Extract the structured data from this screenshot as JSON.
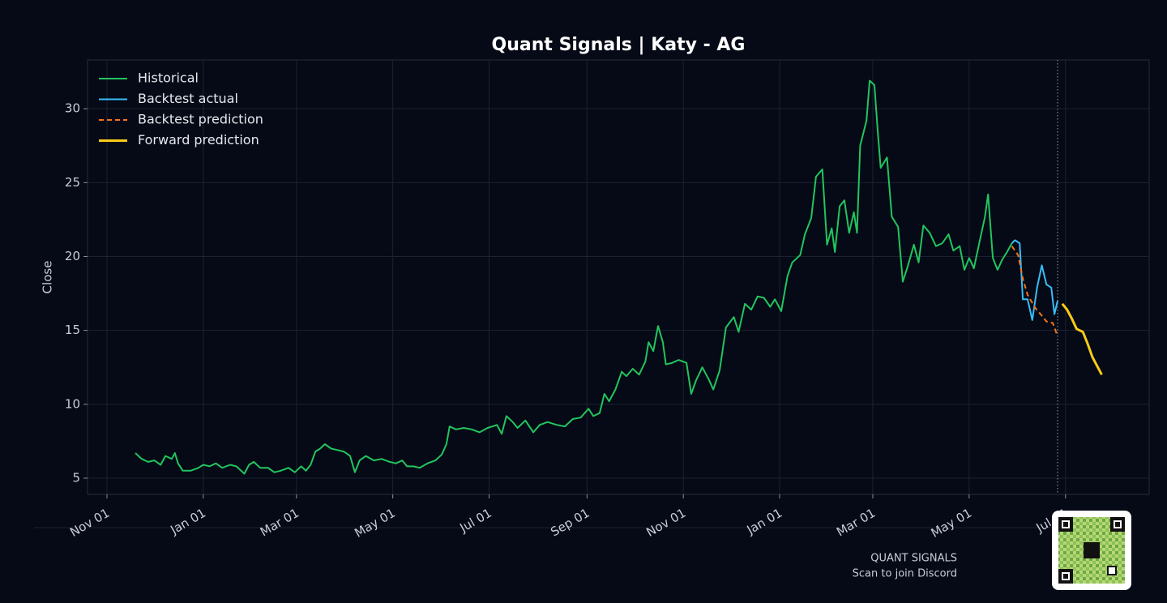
{
  "chart_data": {
    "type": "line",
    "title": "Quant Signals | Katy - AG",
    "ylabel": "Close",
    "xlim": [
      -12.3,
      660
    ],
    "xticks": [
      {
        "value": 0,
        "label": "Nov 01"
      },
      {
        "value": 61,
        "label": "Jan 01"
      },
      {
        "value": 120,
        "label": "Mar 01"
      },
      {
        "value": 181,
        "label": "May 01"
      },
      {
        "value": 242,
        "label": "Jul 01"
      },
      {
        "value": 304,
        "label": "Sep 01"
      },
      {
        "value": 365,
        "label": "Nov 01"
      },
      {
        "value": 426,
        "label": "Jan 01"
      },
      {
        "value": 485,
        "label": "Mar 01"
      },
      {
        "value": 546,
        "label": "May 01"
      },
      {
        "value": 607,
        "label": "Jul 01"
      }
    ],
    "ylim": [
      3.9,
      33.3
    ],
    "yticks": [
      5,
      10,
      15,
      20,
      25,
      30
    ],
    "grid": true,
    "legend": "upper left",
    "vline": 602,
    "series": [
      {
        "name": "Historical",
        "color": "#22c55e",
        "linestyle": "solid",
        "linewidth": 2,
        "x": [
          18,
          22,
          26,
          30,
          34,
          37,
          41,
          43,
          45,
          48,
          53,
          58,
          61,
          65,
          69,
          73,
          78,
          82,
          87,
          90,
          93,
          97,
          102,
          106,
          110,
          115,
          119,
          123,
          126,
          129,
          132,
          135,
          138,
          142,
          146,
          150,
          154,
          157,
          160,
          164,
          169,
          174,
          179,
          183,
          187,
          190,
          194,
          198,
          203,
          208,
          212,
          215,
          217,
          221,
          226,
          231,
          236,
          241,
          247,
          250,
          253,
          257,
          260,
          265,
          270,
          274,
          279,
          285,
          290,
          295,
          300,
          305,
          308,
          312,
          315,
          318,
          322,
          326,
          329,
          333,
          337,
          341,
          343,
          346,
          349,
          352,
          354,
          358,
          362,
          367,
          370,
          373,
          377,
          381,
          384,
          388,
          392,
          397,
          400,
          404,
          408,
          412,
          416,
          420,
          423,
          427,
          431,
          434,
          439,
          442,
          446,
          449,
          453,
          456,
          459,
          461,
          464,
          467,
          470,
          473,
          475,
          477,
          481,
          483,
          486,
          488,
          490,
          494,
          497,
          501,
          504,
          507,
          511,
          514,
          517,
          521,
          525,
          529,
          533,
          536,
          540,
          543,
          546,
          549,
          553,
          556,
          558,
          561,
          564,
          567,
          570,
          573
        ],
        "values": [
          6.7,
          6.3,
          6.1,
          6.2,
          5.9,
          6.5,
          6.3,
          6.7,
          6.0,
          5.5,
          5.5,
          5.7,
          5.9,
          5.8,
          6.0,
          5.7,
          5.9,
          5.8,
          5.3,
          5.9,
          6.1,
          5.7,
          5.7,
          5.4,
          5.5,
          5.7,
          5.4,
          5.8,
          5.5,
          5.9,
          6.8,
          7.0,
          7.3,
          7.0,
          6.9,
          6.8,
          6.5,
          5.4,
          6.2,
          6.5,
          6.2,
          6.3,
          6.1,
          6.0,
          6.2,
          5.8,
          5.8,
          5.7,
          6.0,
          6.2,
          6.6,
          7.3,
          8.5,
          8.3,
          8.4,
          8.3,
          8.1,
          8.4,
          8.6,
          8.0,
          9.2,
          8.8,
          8.4,
          8.9,
          8.1,
          8.6,
          8.8,
          8.6,
          8.5,
          9.0,
          9.1,
          9.7,
          9.2,
          9.4,
          10.7,
          10.2,
          11.0,
          12.2,
          11.9,
          12.4,
          12.0,
          12.9,
          14.2,
          13.6,
          15.3,
          14.2,
          12.7,
          12.8,
          13.0,
          12.8,
          10.7,
          11.6,
          12.5,
          11.7,
          11.0,
          12.3,
          15.2,
          15.9,
          14.9,
          16.8,
          16.4,
          17.3,
          17.2,
          16.6,
          17.1,
          16.3,
          18.7,
          19.6,
          20.1,
          21.5,
          22.6,
          25.4,
          25.9,
          20.8,
          21.9,
          20.3,
          23.4,
          23.8,
          21.6,
          23.0,
          21.6,
          27.5,
          29.2,
          31.9,
          31.6,
          28.6,
          26.0,
          26.7,
          22.7,
          22.0,
          18.3,
          19.3,
          20.8,
          19.6,
          22.1,
          21.6,
          20.7,
          20.9,
          21.5,
          20.4,
          20.7,
          19.1,
          19.9,
          19.2,
          21.2,
          22.7,
          24.2,
          19.9,
          19.1,
          19.8,
          20.3,
          20.9
        ]
      },
      {
        "name": "Backtest actual",
        "color": "#38bdf8",
        "linestyle": "solid",
        "linewidth": 2,
        "x": [
          573,
          575,
          578,
          580,
          583,
          586,
          589,
          592,
          595,
          598,
          600,
          602
        ],
        "values": [
          20.9,
          21.1,
          20.9,
          17.1,
          17.1,
          15.7,
          17.9,
          19.4,
          18.1,
          17.9,
          16.1,
          17.0
        ]
      },
      {
        "name": "Backtest prediction",
        "color": "#f97316",
        "linestyle": "dashed",
        "linewidth": 2,
        "x": [
          573,
          577,
          580,
          583,
          588,
          592,
          595,
          599,
          602
        ],
        "values": [
          20.7,
          20.1,
          18.5,
          17.4,
          16.5,
          16.0,
          15.6,
          15.5,
          14.6
        ]
      },
      {
        "name": "Forward prediction",
        "color": "#facc15",
        "linestyle": "solid",
        "linewidth": 3,
        "x": [
          605,
          608,
          611,
          614,
          618,
          621,
          624,
          627,
          630
        ],
        "values": [
          16.8,
          16.4,
          15.8,
          15.1,
          14.9,
          14.1,
          13.2,
          12.6,
          12.0
        ]
      }
    ]
  },
  "watermark": {
    "brand": "QUANT SIGNALS",
    "caption": "Scan to join Discord"
  }
}
